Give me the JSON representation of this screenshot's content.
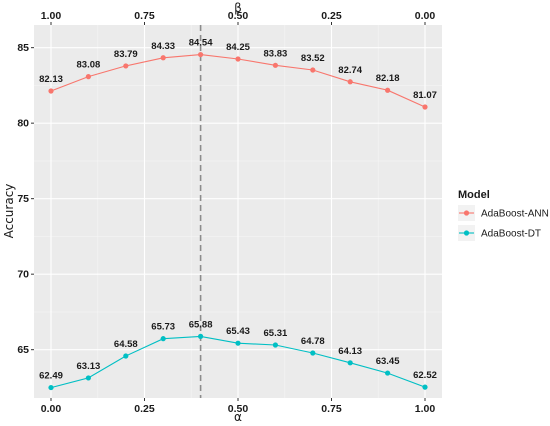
{
  "chart_data": {
    "type": "line",
    "xlabel": "α",
    "ylabel": "Accuracy",
    "secondary_xlabel": "β",
    "xlim": [
      0,
      1
    ],
    "ylim": [
      61.8,
      86.5
    ],
    "x_ticks": [
      0.0,
      0.25,
      0.5,
      0.75,
      1.0
    ],
    "x_tick_labels": [
      "0.00",
      "0.25",
      "0.50",
      "0.75",
      "1.00"
    ],
    "top_tick_labels": [
      "1.00",
      "0.75",
      "0.50",
      "0.25",
      "0.00"
    ],
    "y_ticks": [
      65,
      70,
      75,
      80,
      85
    ],
    "y_tick_labels": [
      "65",
      "70",
      "75",
      "80",
      "85"
    ],
    "x": [
      0.0,
      0.1,
      0.2,
      0.3,
      0.4,
      0.5,
      0.6,
      0.7,
      0.8,
      0.9,
      1.0
    ],
    "reference_line_x": 0.4,
    "grid": true,
    "legend": {
      "title": "Model",
      "placement": "right"
    },
    "series": [
      {
        "name": "AdaBoost-ANN",
        "color": "#F8766D",
        "values": [
          82.13,
          83.08,
          83.79,
          84.33,
          84.54,
          84.25,
          83.83,
          83.52,
          82.74,
          82.18,
          81.07
        ],
        "labels": [
          "82.13",
          "83.08",
          "83.79",
          "84.33",
          "84.54",
          "84.25",
          "83.83",
          "83.52",
          "82.74",
          "82.18",
          "81.07"
        ]
      },
      {
        "name": "AdaBoost-DT",
        "color": "#00BFC4",
        "values": [
          62.49,
          63.13,
          64.58,
          65.73,
          65.88,
          65.43,
          65.31,
          64.78,
          64.13,
          63.45,
          62.52
        ],
        "labels": [
          "62.49",
          "63.13",
          "64.58",
          "65.73",
          "65.88",
          "65.43",
          "65.31",
          "64.78",
          "64.13",
          "63.45",
          "62.52"
        ]
      }
    ]
  }
}
